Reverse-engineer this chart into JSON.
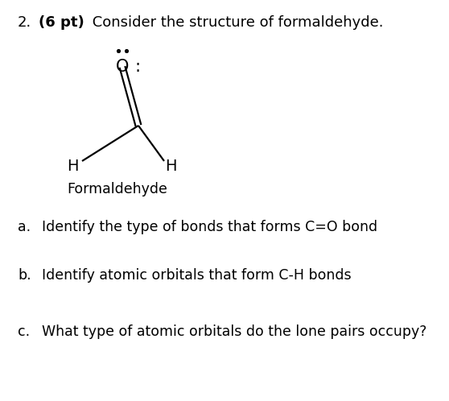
{
  "background_color": "#ffffff",
  "title_number": "2.",
  "title_bold": "(6 pt)",
  "title_text": " Consider the structure of formaldehyde.",
  "title_fontsize": 13,
  "label_fontsize": 12.5,
  "molecule_label": "Formaldehyde",
  "question_a": "Identify the type of bonds that forms C=O bond",
  "question_b": "Identify atomic orbitals that form C-H bonds",
  "question_c": "What type of atomic orbitals do the lone pairs occupy?",
  "fig_width": 5.58,
  "fig_height": 4.98,
  "dpi": 100,
  "title_red_squiggle": true
}
